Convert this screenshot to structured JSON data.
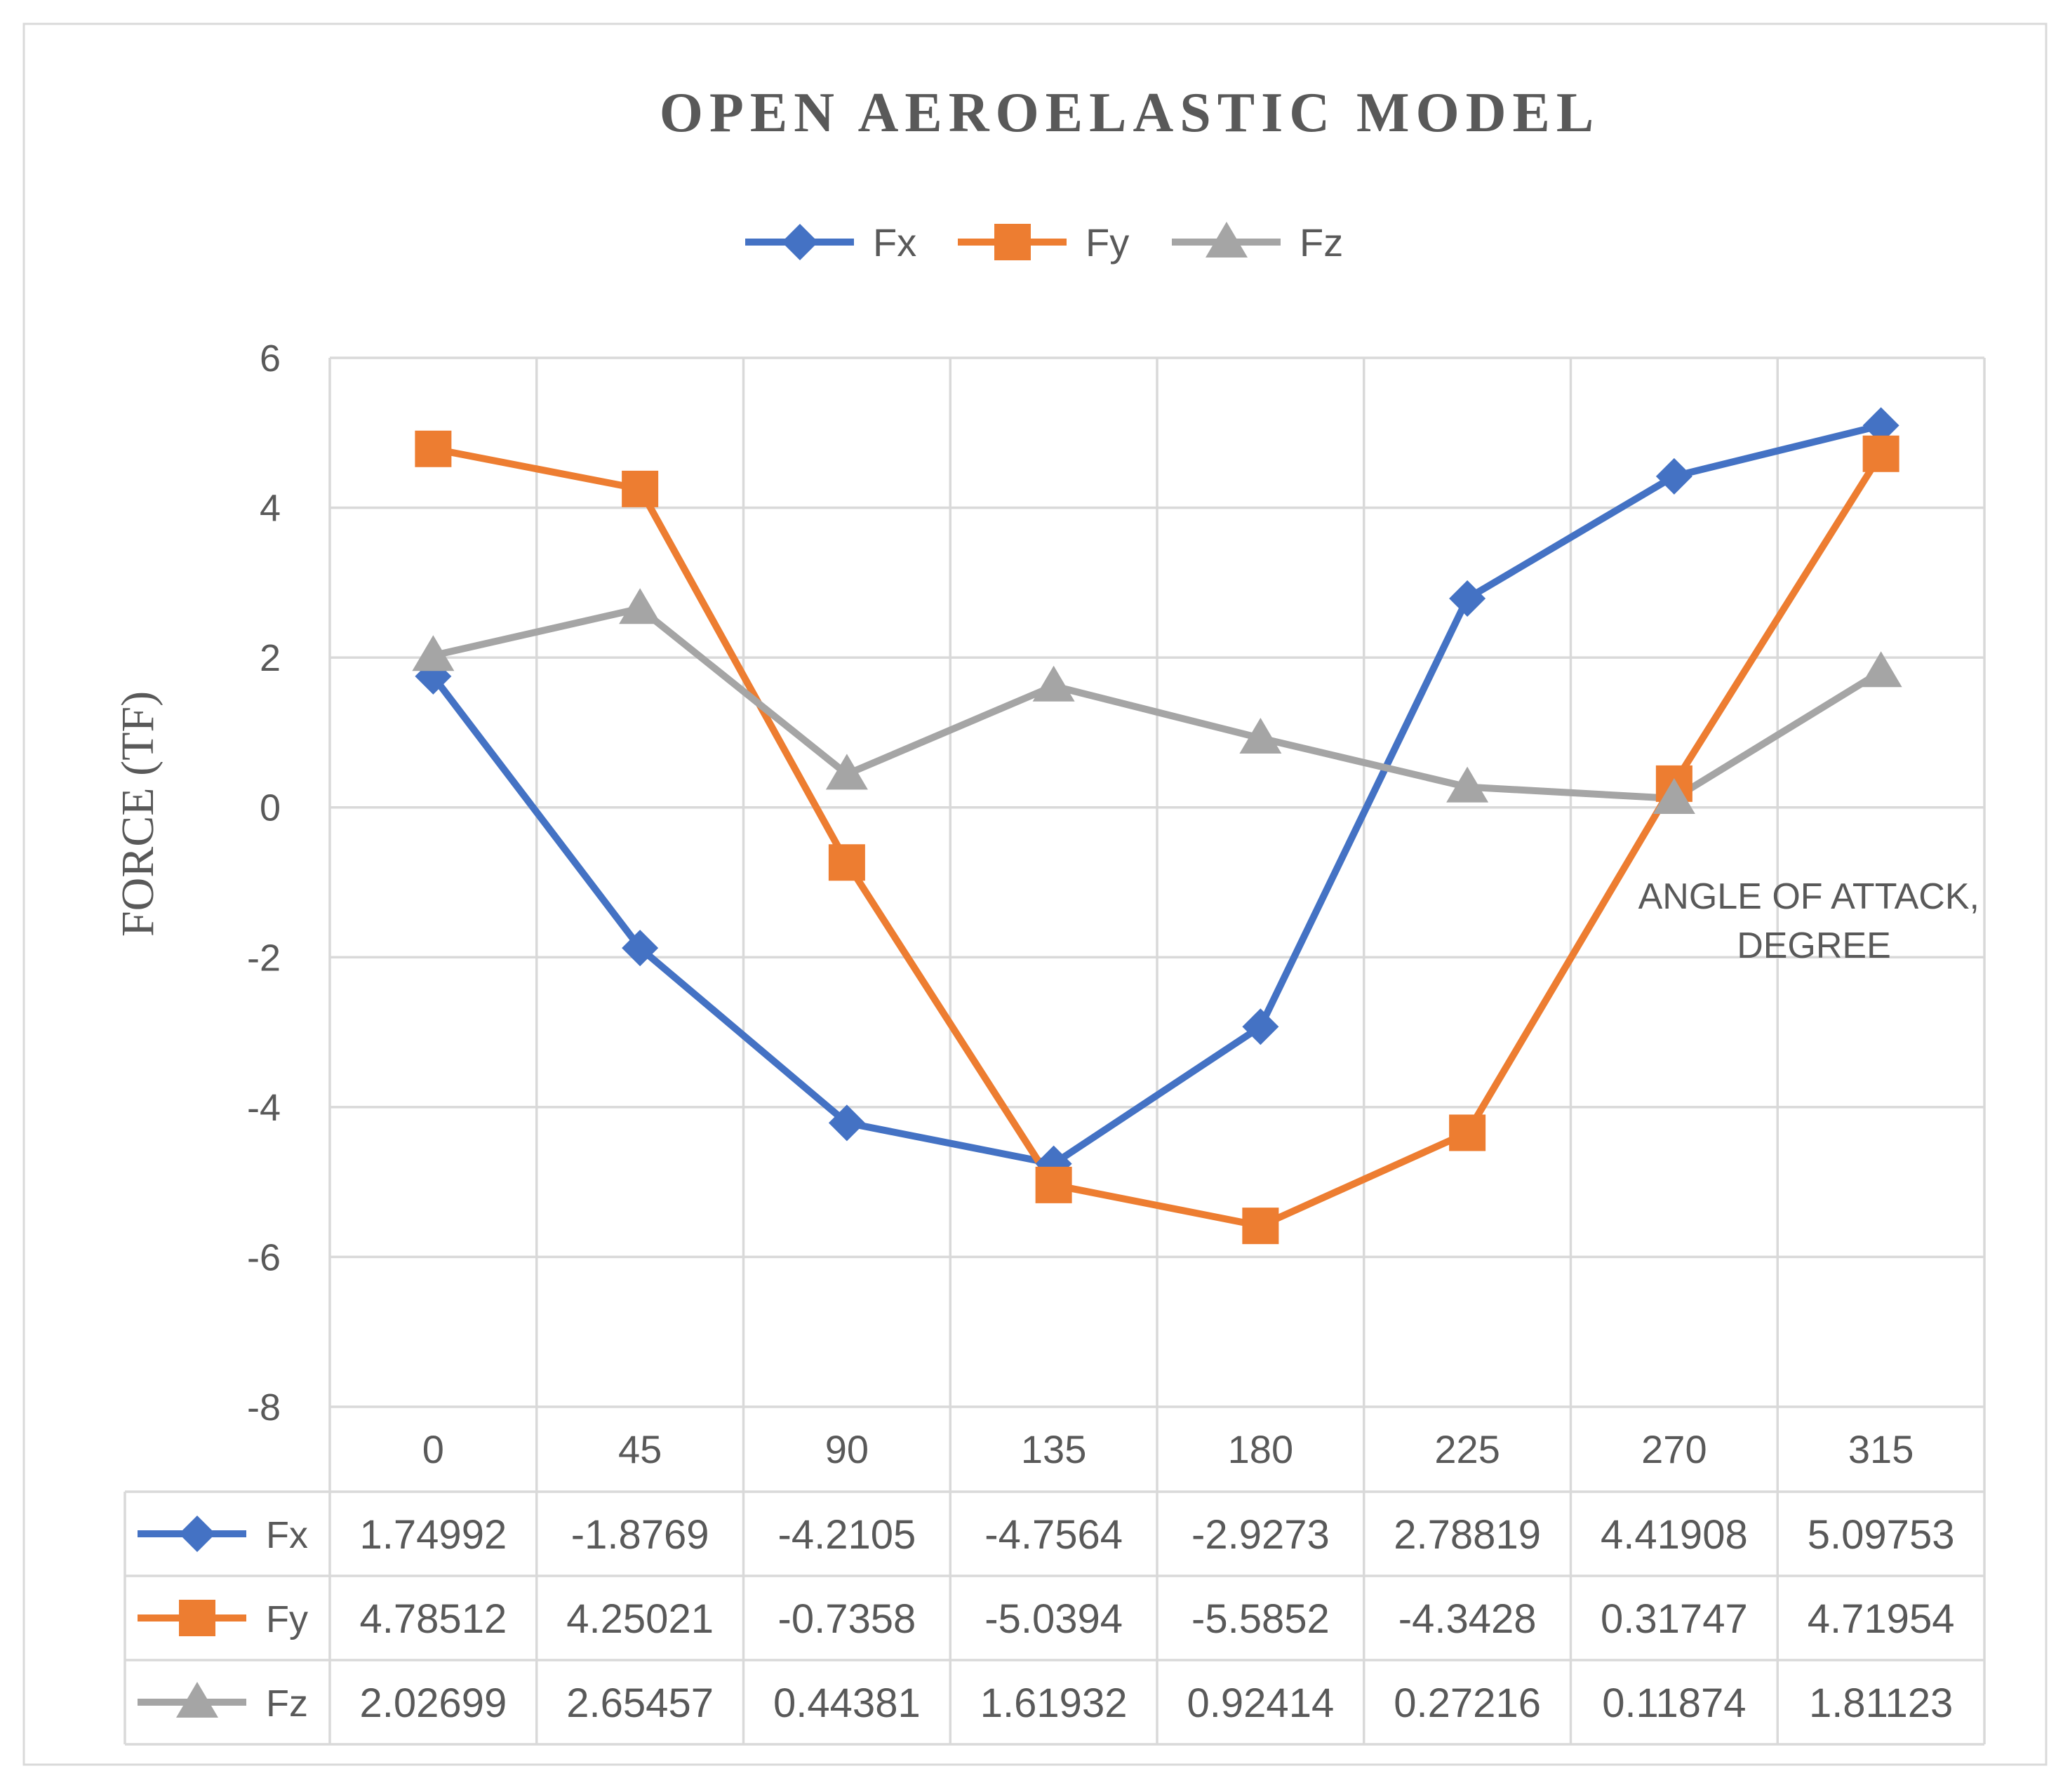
{
  "chart_data": {
    "type": "line",
    "title": "OPEN AEROELASTIC MODEL",
    "ylabel": "FORCE (TF)",
    "xlabel": "ANGLE OF ATTACK,\nDEGREE",
    "xlabel_lines": [
      "ANGLE OF ATTACK,",
      "DEGREE"
    ],
    "categories": [
      "0",
      "45",
      "90",
      "135",
      "180",
      "225",
      "270",
      "315"
    ],
    "ylim": [
      -8,
      6
    ],
    "yticks": [
      6,
      4,
      2,
      0,
      -2,
      -4,
      -6,
      -8
    ],
    "ytick_labels": [
      "6",
      "4",
      "2",
      "0",
      "-2",
      "-4",
      "-6",
      "-8"
    ],
    "grid": true,
    "legend_position": "top",
    "data_table": true,
    "series": [
      {
        "name": "Fx",
        "color": "#4472C4",
        "marker": "diamond",
        "values": [
          1.74992,
          -1.8769,
          -4.2105,
          -4.7564,
          -2.9273,
          2.78819,
          4.41908,
          5.09753
        ],
        "labels": [
          "1.74992",
          "-1.8769",
          "-4.2105",
          "-4.7564",
          "-2.9273",
          "2.78819",
          "4.41908",
          "5.09753"
        ]
      },
      {
        "name": "Fy",
        "color": "#ED7D31",
        "marker": "square",
        "values": [
          4.78512,
          4.25021,
          -0.7358,
          -5.0394,
          -5.5852,
          -4.3428,
          0.31747,
          4.71954
        ],
        "labels": [
          "4.78512",
          "4.25021",
          "-0.7358",
          "-5.0394",
          "-5.5852",
          "-4.3428",
          "0.31747",
          "4.71954"
        ]
      },
      {
        "name": "Fz",
        "color": "#A5A5A5",
        "marker": "triangle",
        "values": [
          2.02699,
          2.65457,
          0.44381,
          1.61932,
          0.92414,
          0.27216,
          0.11874,
          1.81123
        ],
        "labels": [
          "2.02699",
          "2.65457",
          "0.44381",
          "1.61932",
          "0.92414",
          "0.27216",
          "0.11874",
          "1.81123"
        ]
      }
    ]
  }
}
